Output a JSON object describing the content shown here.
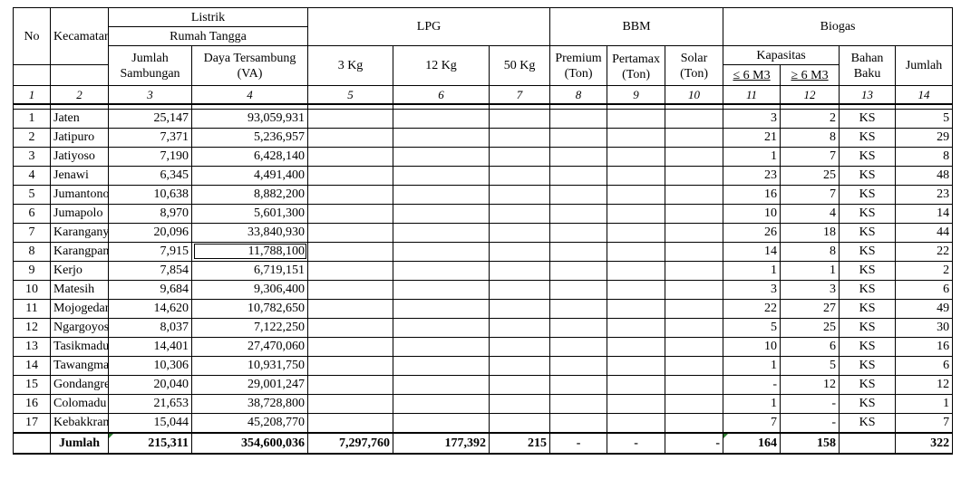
{
  "headers": {
    "no": "No",
    "kecamatan": "Kecamatan",
    "listrik": "Listrik",
    "rumah_tangga": "Rumah Tangga",
    "jumlah_sambungan_1": "Jumlah",
    "jumlah_sambungan_2": "Sambungan",
    "daya_1": "Daya Tersambung",
    "daya_2": "(VA)",
    "lpg": "LPG",
    "lpg_3": "3 Kg",
    "lpg_12": "12 Kg",
    "lpg_50": "50 Kg",
    "bbm": "BBM",
    "premium_1": "Premium",
    "premium_2": "(Ton)",
    "pertamax_1": "Pertamax",
    "pertamax_2": "(Ton)",
    "solar_1": "Solar",
    "solar_2": "(Ton)",
    "biogas": "Biogas",
    "kapasitas": "Kapasitas",
    "kap_small": "≤ 6 M3",
    "kap_large": "≥ 6 M3",
    "bahan_1": "Bahan",
    "bahan_2": "Baku",
    "jumlah": "Jumlah"
  },
  "column_numbers": [
    "1",
    "2",
    "3",
    "4",
    "5",
    "6",
    "7",
    "8",
    "9",
    "10",
    "11",
    "12",
    "13",
    "14"
  ],
  "rows": [
    {
      "no": "1",
      "kec": "Jaten",
      "sambungan": "25,147",
      "daya": "93,059,931",
      "k1": "3",
      "k2": "2",
      "baku": "KS",
      "jml": "5"
    },
    {
      "no": "2",
      "kec": "Jatipuro",
      "sambungan": "7,371",
      "daya": "5,236,957",
      "k1": "21",
      "k2": "8",
      "baku": "KS",
      "jml": "29"
    },
    {
      "no": "3",
      "kec": "Jatiyoso",
      "sambungan": "7,190",
      "daya": "6,428,140",
      "k1": "1",
      "k2": "7",
      "baku": "KS",
      "jml": "8"
    },
    {
      "no": "4",
      "kec": "Jenawi",
      "sambungan": "6,345",
      "daya": "4,491,400",
      "k1": "23",
      "k2": "25",
      "baku": "KS",
      "jml": "48"
    },
    {
      "no": "5",
      "kec": "Jumantono",
      "sambungan": "10,638",
      "daya": "8,882,200",
      "k1": "16",
      "k2": "7",
      "baku": "KS",
      "jml": "23"
    },
    {
      "no": "6",
      "kec": "Jumapolo",
      "sambungan": "8,970",
      "daya": "5,601,300",
      "k1": "10",
      "k2": "4",
      "baku": "KS",
      "jml": "14"
    },
    {
      "no": "7",
      "kec": "Karanganyar",
      "sambungan": "20,096",
      "daya": "33,840,930",
      "k1": "26",
      "k2": "18",
      "baku": "KS",
      "jml": "44"
    },
    {
      "no": "8",
      "kec": "Karangpandan",
      "sambungan": "7,915",
      "daya": "11,788,100",
      "k1": "14",
      "k2": "8",
      "baku": "KS",
      "jml": "22"
    },
    {
      "no": "9",
      "kec": "Kerjo",
      "sambungan": "7,854",
      "daya": "6,719,151",
      "k1": "1",
      "k2": "1",
      "baku": "KS",
      "jml": "2"
    },
    {
      "no": "10",
      "kec": "Matesih",
      "sambungan": "9,684",
      "daya": "9,306,400",
      "k1": "3",
      "k2": "3",
      "baku": "KS",
      "jml": "6"
    },
    {
      "no": "11",
      "kec": "Mojogedang",
      "sambungan": "14,620",
      "daya": "10,782,650",
      "k1": "22",
      "k2": "27",
      "baku": "KS",
      "jml": "49"
    },
    {
      "no": "12",
      "kec": "Ngargoyoso",
      "sambungan": "8,037",
      "daya": "7,122,250",
      "k1": "5",
      "k2": "25",
      "baku": "KS",
      "jml": "30"
    },
    {
      "no": "13",
      "kec": "Tasikmadu",
      "sambungan": "14,401",
      "daya": "27,470,060",
      "k1": "10",
      "k2": "6",
      "baku": "KS",
      "jml": "16"
    },
    {
      "no": "14",
      "kec": "Tawangmangu",
      "sambungan": "10,306",
      "daya": "10,931,750",
      "k1": "1",
      "k2": "5",
      "baku": "KS",
      "jml": "6"
    },
    {
      "no": "15",
      "kec": "Gondangrejo",
      "sambungan": "20,040",
      "daya": "29,001,247",
      "k1": "-",
      "k2": "12",
      "baku": "KS",
      "jml": "12"
    },
    {
      "no": "16",
      "kec": "Colomadu",
      "sambungan": "21,653",
      "daya": "38,728,800",
      "k1": "1",
      "k2": "-",
      "baku": "KS",
      "jml": "1"
    },
    {
      "no": "17",
      "kec": "Kebakkramat",
      "sambungan": "15,044",
      "daya": "45,208,770",
      "k1": "7",
      "k2": "-",
      "baku": "KS",
      "jml": "7"
    }
  ],
  "total": {
    "label": "Jumlah",
    "sambungan": "215,311",
    "daya": "354,600,036",
    "lpg3": "7,297,760",
    "lpg12": "177,392",
    "lpg50": "215",
    "premium": "-",
    "pertamax": "-",
    "solar": "-",
    "k1": "164",
    "k2": "158",
    "baku": "",
    "jml": "322"
  }
}
